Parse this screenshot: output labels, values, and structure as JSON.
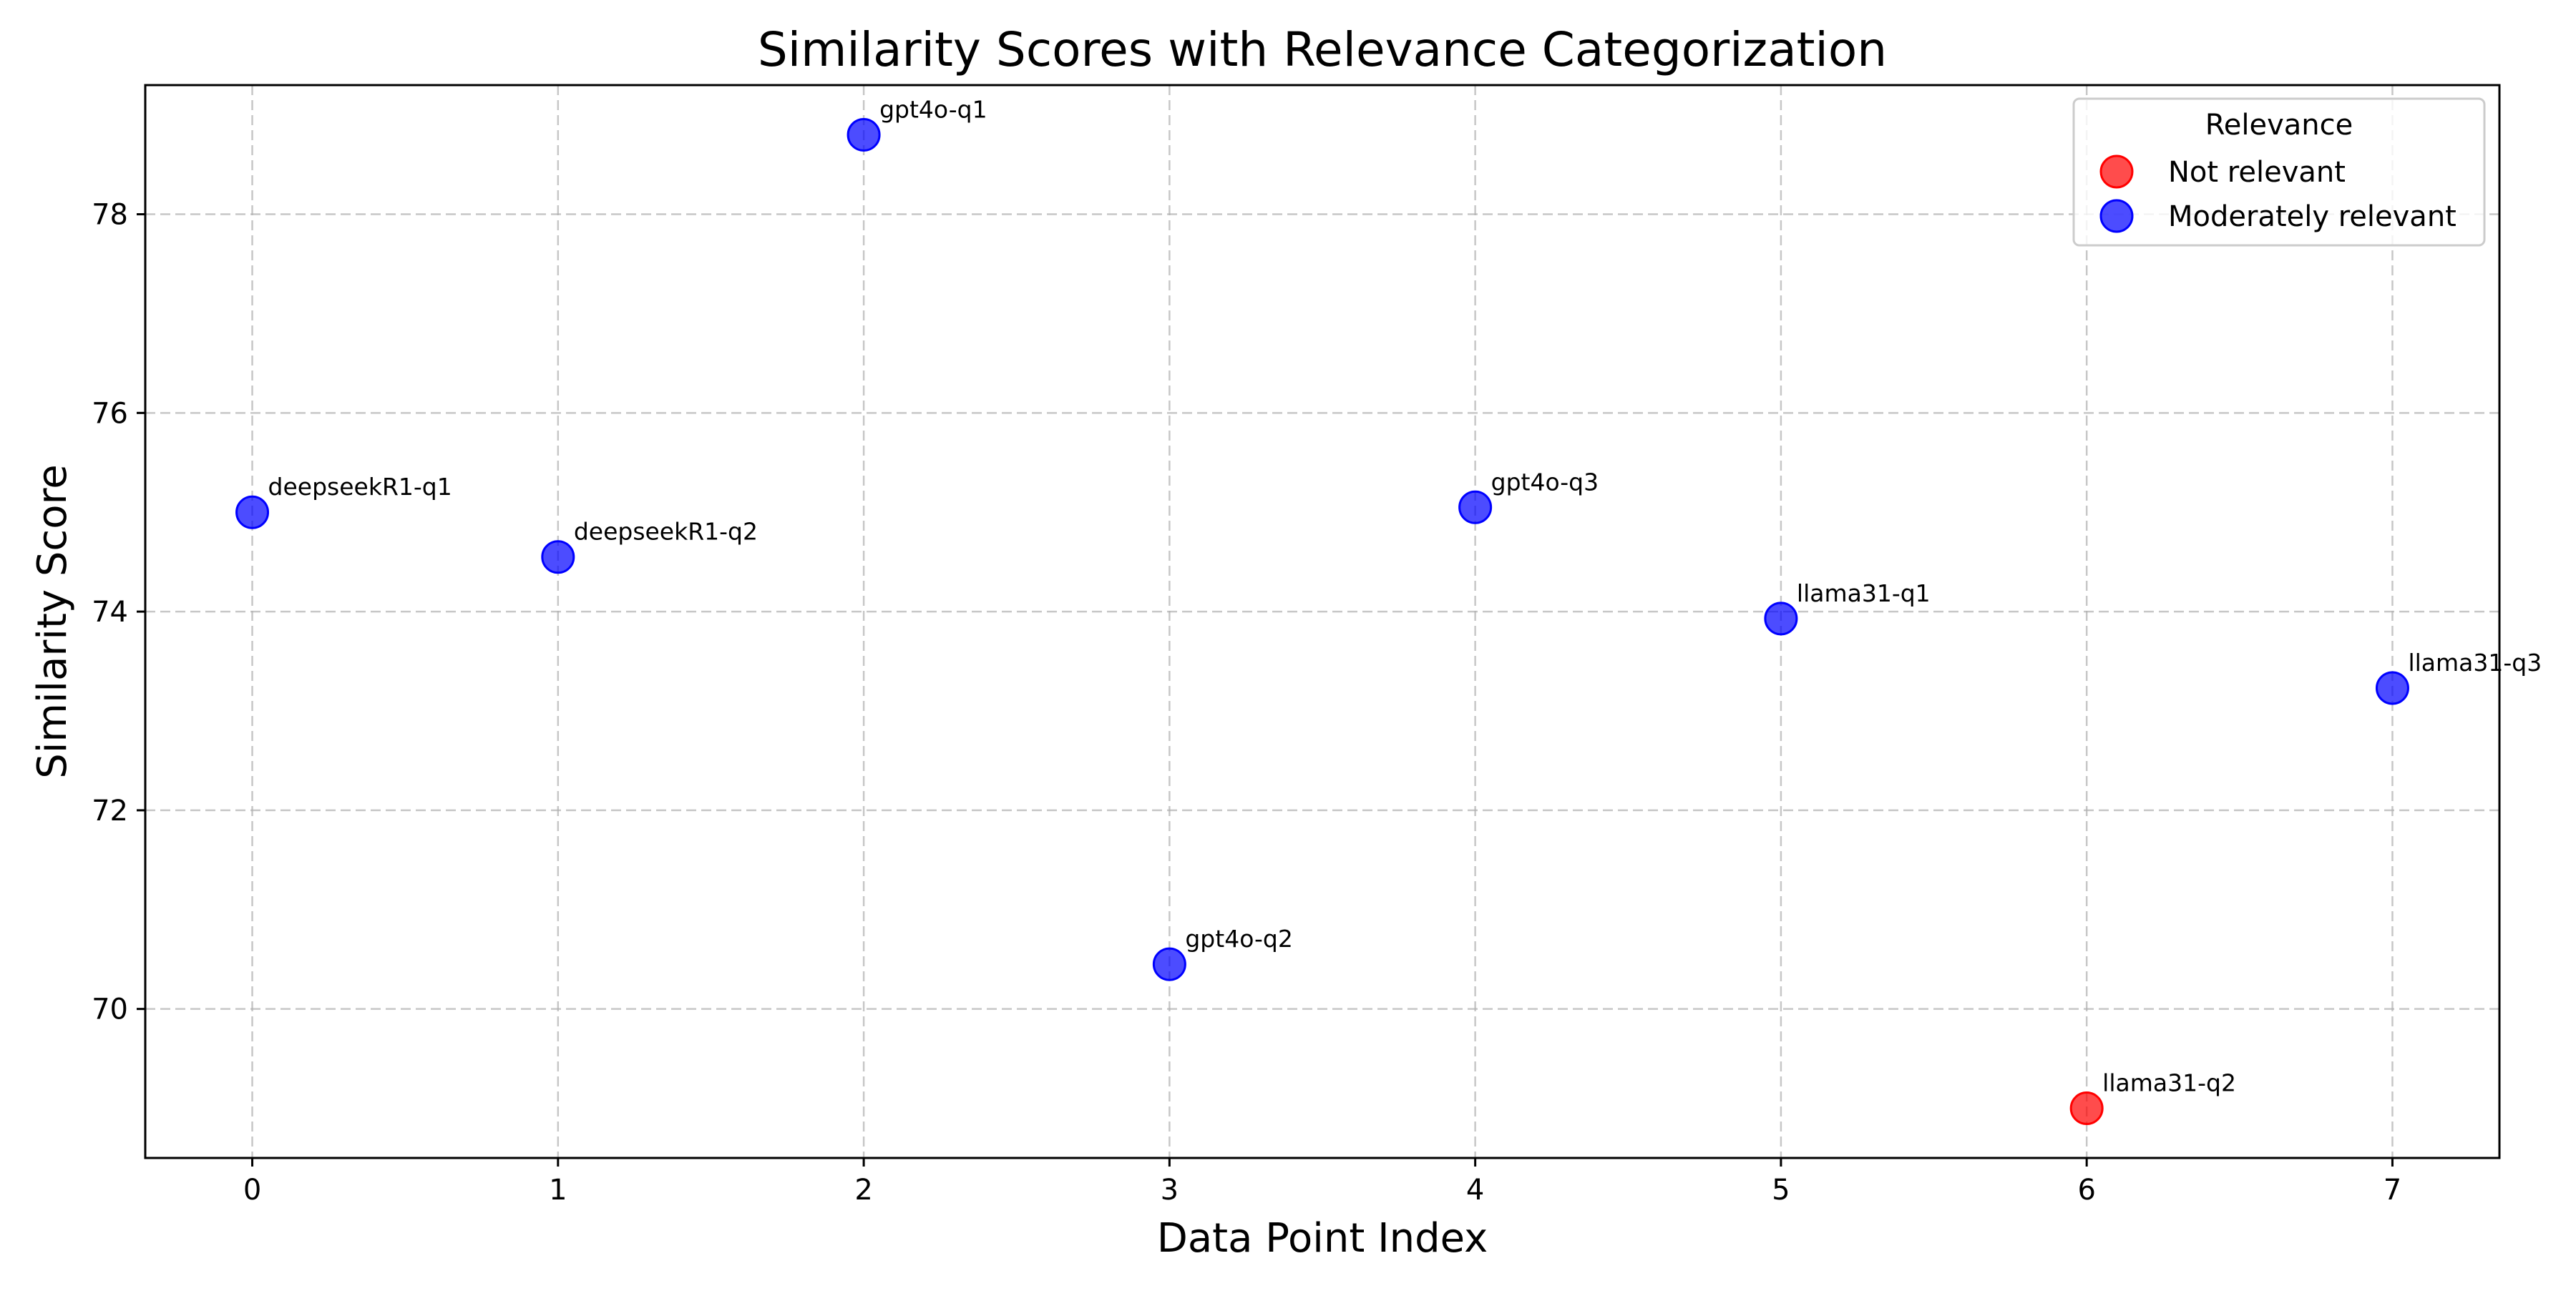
{
  "chart_data": {
    "type": "scatter",
    "title": "Similarity Scores with Relevance Categorization",
    "xlabel": "Data Point Index",
    "ylabel": "Similarity Score",
    "xlim": [
      -0.35,
      7.35
    ],
    "ylim": [
      68.5,
      79.3
    ],
    "xticks": [
      0,
      1,
      2,
      3,
      4,
      5,
      6,
      7
    ],
    "yticks": [
      70,
      72,
      74,
      76,
      78
    ],
    "grid": true,
    "legend": {
      "title": "Relevance",
      "placement": "top-right",
      "entries": [
        {
          "name": "Not relevant",
          "color": "#ff0000"
        },
        {
          "name": "Moderately relevant",
          "color": "#0000ff"
        }
      ]
    },
    "points": [
      {
        "x": 0,
        "y": 75.0,
        "label": "deepseekR1-q1",
        "category": "Moderately relevant"
      },
      {
        "x": 1,
        "y": 74.55,
        "label": "deepseekR1-q2",
        "category": "Moderately relevant"
      },
      {
        "x": 2,
        "y": 78.8,
        "label": "gpt4o-q1",
        "category": "Moderately relevant"
      },
      {
        "x": 3,
        "y": 70.45,
        "label": "gpt4o-q2",
        "category": "Moderately relevant"
      },
      {
        "x": 4,
        "y": 75.05,
        "label": "gpt4o-q3",
        "category": "Moderately relevant"
      },
      {
        "x": 5,
        "y": 73.93,
        "label": "llama31-q1",
        "category": "Moderately relevant"
      },
      {
        "x": 6,
        "y": 69.0,
        "label": "llama31-q2",
        "category": "Not relevant"
      },
      {
        "x": 7,
        "y": 73.23,
        "label": "llama31-q3",
        "category": "Moderately relevant"
      }
    ]
  }
}
